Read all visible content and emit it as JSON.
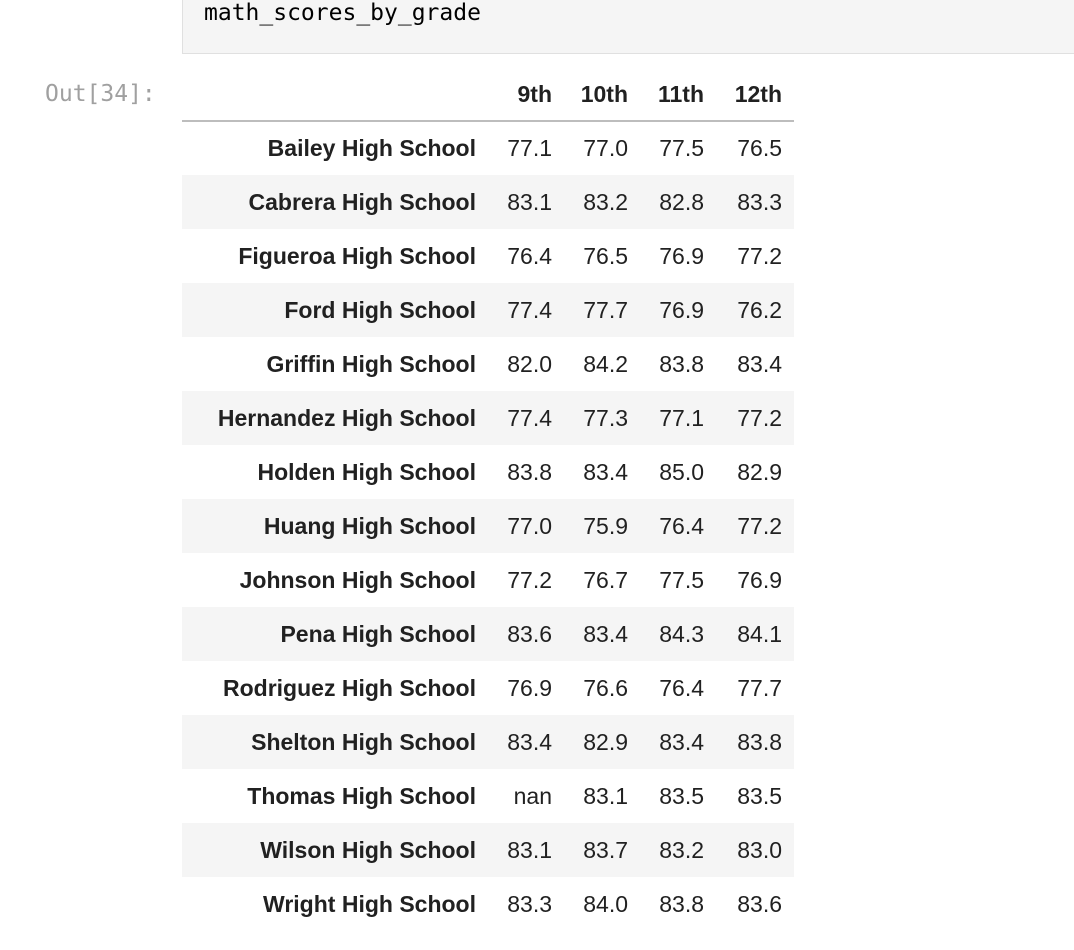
{
  "code": {
    "line": "math_scores_by_grade"
  },
  "output": {
    "prompt": "Out[34]:",
    "columns": [
      "9th",
      "10th",
      "11th",
      "12th"
    ],
    "rows": [
      {
        "school": "Bailey High School",
        "values": [
          "77.1",
          "77.0",
          "77.5",
          "76.5"
        ]
      },
      {
        "school": "Cabrera High School",
        "values": [
          "83.1",
          "83.2",
          "82.8",
          "83.3"
        ]
      },
      {
        "school": "Figueroa High School",
        "values": [
          "76.4",
          "76.5",
          "76.9",
          "77.2"
        ]
      },
      {
        "school": "Ford High School",
        "values": [
          "77.4",
          "77.7",
          "76.9",
          "76.2"
        ]
      },
      {
        "school": "Griffin High School",
        "values": [
          "82.0",
          "84.2",
          "83.8",
          "83.4"
        ]
      },
      {
        "school": "Hernandez High School",
        "values": [
          "77.4",
          "77.3",
          "77.1",
          "77.2"
        ]
      },
      {
        "school": "Holden High School",
        "values": [
          "83.8",
          "83.4",
          "85.0",
          "82.9"
        ]
      },
      {
        "school": "Huang High School",
        "values": [
          "77.0",
          "75.9",
          "76.4",
          "77.2"
        ]
      },
      {
        "school": "Johnson High School",
        "values": [
          "77.2",
          "76.7",
          "77.5",
          "76.9"
        ]
      },
      {
        "school": "Pena High School",
        "values": [
          "83.6",
          "83.4",
          "84.3",
          "84.1"
        ]
      },
      {
        "school": "Rodriguez High School",
        "values": [
          "76.9",
          "76.6",
          "76.4",
          "77.7"
        ]
      },
      {
        "school": "Shelton High School",
        "values": [
          "83.4",
          "82.9",
          "83.4",
          "83.8"
        ]
      },
      {
        "school": "Thomas High School",
        "values": [
          "nan",
          "83.1",
          "83.5",
          "83.5"
        ]
      },
      {
        "school": "Wilson High School",
        "values": [
          "83.1",
          "83.7",
          "83.2",
          "83.0"
        ]
      },
      {
        "school": "Wright High School",
        "values": [
          "83.3",
          "84.0",
          "83.8",
          "83.6"
        ]
      }
    ]
  },
  "colors": {
    "stripe": "#f5f5f5",
    "prompt": "#a0a0a0",
    "header_rule": "#bdbdbd"
  }
}
